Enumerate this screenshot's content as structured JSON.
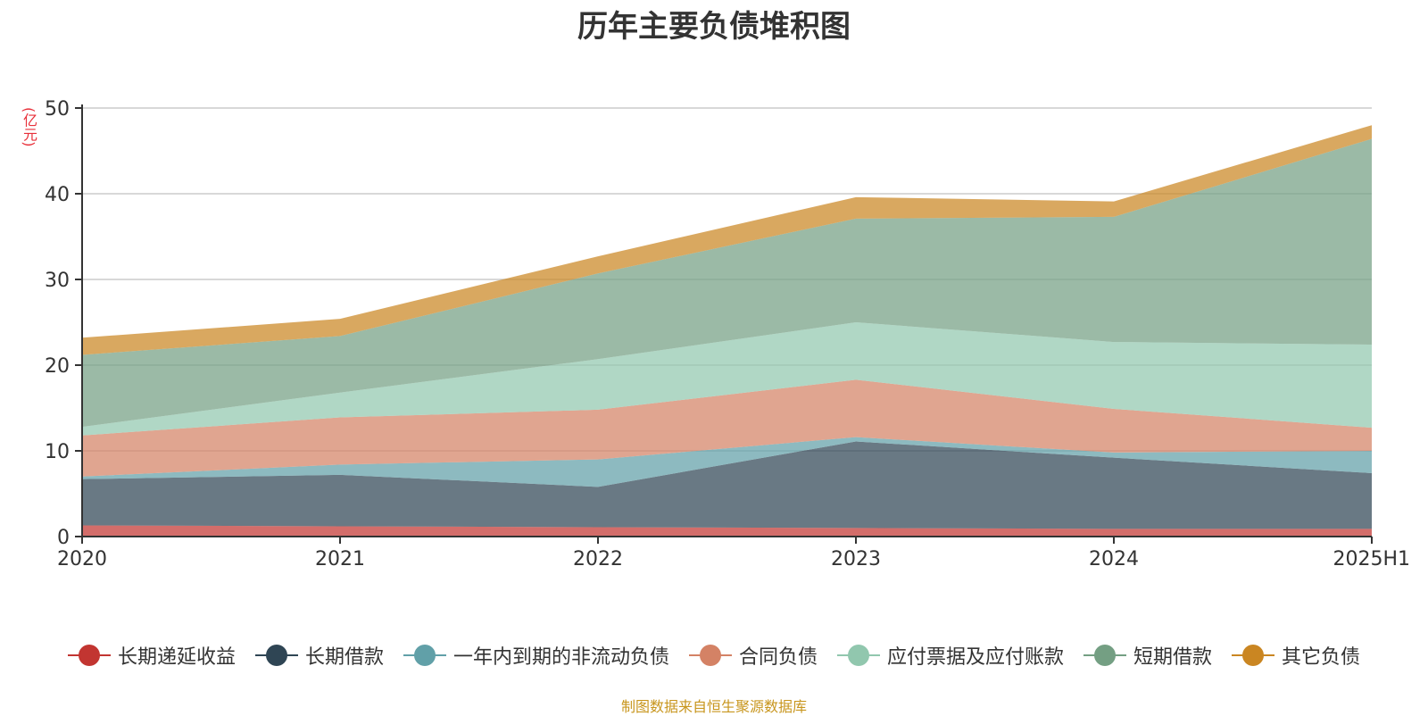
{
  "title": "历年主要负债堆积图",
  "unit_label": "(亿元)",
  "source": "制图数据来自恒生聚源数据库",
  "chart_data": {
    "type": "area",
    "stacked": true,
    "title": "历年主要负债堆积图",
    "ylabel": "(亿元)",
    "ylim": [
      0,
      50
    ],
    "yticks": [
      0,
      10,
      20,
      30,
      40,
      50
    ],
    "grid": true,
    "legend_position": "bottom",
    "categories": [
      "2020",
      "2021",
      "2022",
      "2023",
      "2024",
      "2025H1"
    ],
    "series": [
      {
        "name": "长期递延收益",
        "color": "#c23531",
        "values": [
          1.3,
          1.2,
          1.1,
          1.0,
          0.9,
          0.9
        ]
      },
      {
        "name": "长期借款",
        "color": "#2f4554",
        "values": [
          5.4,
          6.0,
          4.7,
          10.1,
          8.3,
          6.5
        ]
      },
      {
        "name": "一年内到期的非流动负债",
        "color": "#61a0a8",
        "values": [
          0.3,
          1.2,
          3.2,
          0.5,
          0.6,
          2.6
        ]
      },
      {
        "name": "合同负债",
        "color": "#d48265",
        "values": [
          4.8,
          5.5,
          5.8,
          6.7,
          5.1,
          2.7
        ]
      },
      {
        "name": "应付票据及应付账款",
        "color": "#91c7ae",
        "values": [
          1.0,
          2.9,
          5.9,
          6.7,
          7.8,
          9.7
        ]
      },
      {
        "name": "短期借款",
        "color": "#749f83",
        "values": [
          8.4,
          6.6,
          10.0,
          12.1,
          14.6,
          24.0
        ]
      },
      {
        "name": "其它负债",
        "color": "#ca8622",
        "values": [
          2.0,
          2.0,
          2.0,
          2.5,
          1.8,
          1.6
        ]
      }
    ]
  }
}
